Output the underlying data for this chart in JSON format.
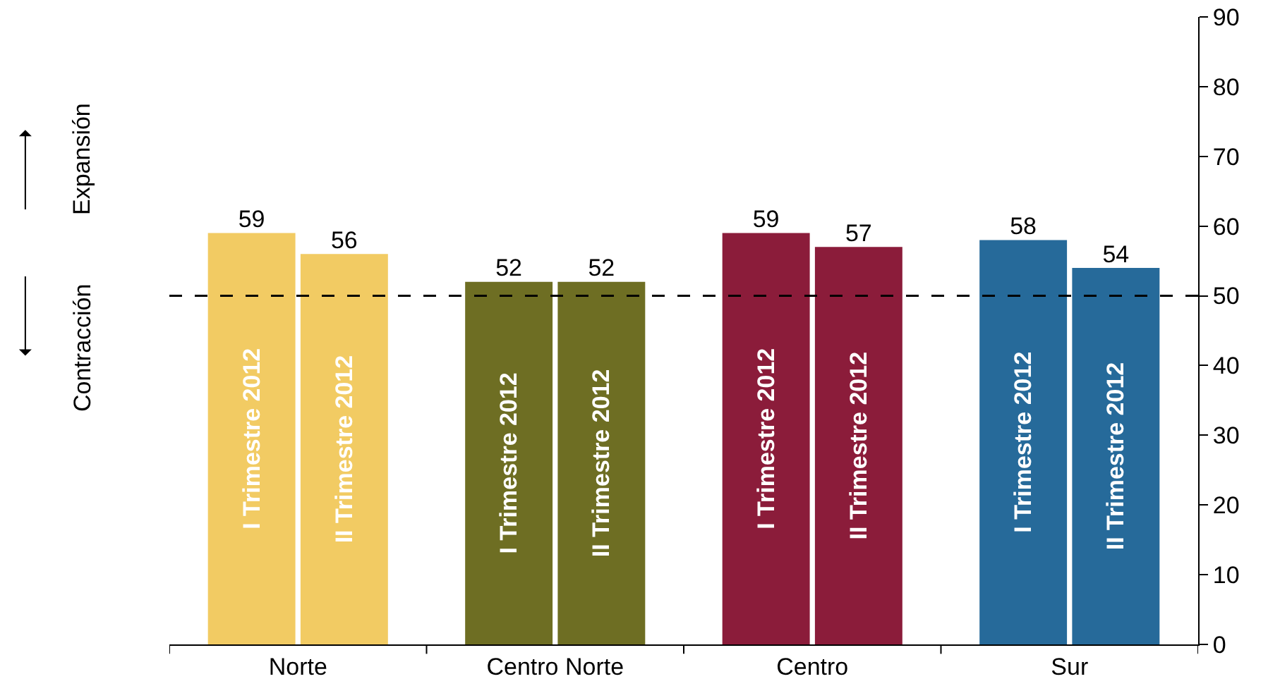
{
  "chart_data": {
    "type": "bar",
    "categories": [
      "Norte",
      "Centro Norte",
      "Centro",
      "Sur"
    ],
    "series": [
      {
        "name": "I Trimestre 2012",
        "colors": [
          "#f2cb63",
          "#6e6e23",
          "#8b1c3a",
          "#266a9a"
        ],
        "values": [
          59,
          52,
          59,
          58
        ]
      },
      {
        "name": "II Trimestre 2012",
        "colors": [
          "#f2cb63",
          "#6e6e23",
          "#8b1c3a",
          "#266a9a"
        ],
        "values": [
          56,
          52,
          57,
          54
        ]
      }
    ],
    "ylim": [
      0,
      90
    ],
    "yticks": [
      0,
      10,
      20,
      30,
      40,
      50,
      60,
      70,
      80,
      90
    ],
    "ref_lines": [
      {
        "axis": "y",
        "value": 50,
        "color": "#000000",
        "line_style": "dashed"
      }
    ],
    "annotations": [
      "Expansión",
      "Contracción"
    ],
    "data_labels": true,
    "grid": false,
    "legend": false
  }
}
